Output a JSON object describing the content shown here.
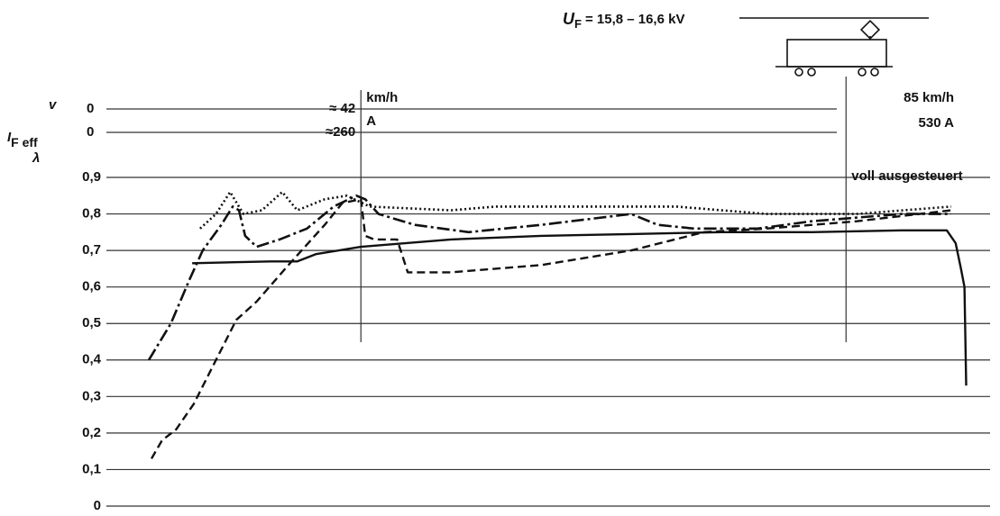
{
  "chart_data": {
    "type": "line",
    "ylabel": "λ",
    "ylim": [
      0,
      0.9
    ],
    "yticks": [
      0,
      {
        "value": 0.1,
        "label": "0,1"
      },
      {
        "value": 0.2,
        "label": "0,2"
      },
      {
        "value": 0.3,
        "label": "0,3"
      },
      {
        "value": 0.4,
        "label": "0,4"
      },
      {
        "value": 0.5,
        "label": "0,5"
      },
      {
        "value": 0.6,
        "label": "0,6"
      },
      {
        "value": 0.7,
        "label": "0,7"
      },
      {
        "value": 0.8,
        "label": "0,8"
      },
      {
        "value": 0.9,
        "label": "0,9"
      }
    ],
    "xlim": [
      0,
      100
    ],
    "grid": true,
    "supply": {
      "symbol": "U",
      "subscript": "F",
      "text": "= 15,8 – 16,6 kV"
    },
    "annotation": {
      "x": 83.7,
      "text": "voll ausgesteuert"
    },
    "scale_rows": [
      {
        "label": "v",
        "label_sub": null,
        "start": "0",
        "marks": [
          {
            "x": 28.8,
            "before": "≈ 42",
            "after": "km/h"
          },
          {
            "x": 83.7,
            "before": null,
            "after": "85 km/h"
          }
        ]
      },
      {
        "label": "I",
        "label_sub": "F eff",
        "start": "0",
        "marks": [
          {
            "x": 28.8,
            "before": "≈260",
            "after": "A"
          },
          {
            "x": 83.7,
            "before": null,
            "after": "530 A"
          }
        ]
      }
    ],
    "series": [
      {
        "color": "#111111",
        "dash": "none",
        "width": 2.4,
        "x": [
          9.7,
          18.6,
          21.6,
          23.7,
          28.8,
          39.0,
          49.2,
          59.4,
          69.6,
          79.8,
          90.0,
          95.1,
          96.1,
          96.7,
          97.1,
          97.3
        ],
        "values": [
          0.665,
          0.67,
          0.67,
          0.69,
          0.71,
          0.73,
          0.74,
          0.745,
          0.75,
          0.75,
          0.755,
          0.755,
          0.72,
          0.65,
          0.6,
          0.33
        ]
      },
      {
        "color": "#111111",
        "dash": "14,4,3,4",
        "width": 2.6,
        "x": [
          4.8,
          5.8,
          7.3,
          9.4,
          10.9,
          13.0,
          14.3,
          15.0,
          15.7,
          17.0,
          19.6,
          22.7,
          25.7,
          28.3,
          29.3,
          30.8,
          34.9,
          41.0,
          49.2,
          59.4,
          62.4,
          66.5,
          73.7,
          79.8,
          90.0,
          95.6
        ],
        "values": [
          0.4,
          0.44,
          0.5,
          0.62,
          0.7,
          0.77,
          0.82,
          0.81,
          0.74,
          0.71,
          0.73,
          0.76,
          0.82,
          0.85,
          0.84,
          0.8,
          0.77,
          0.75,
          0.77,
          0.8,
          0.77,
          0.76,
          0.76,
          0.78,
          0.8,
          0.8
        ]
      },
      {
        "color": "#111111",
        "dash": "9,5",
        "width": 2.4,
        "x": [
          5.1,
          6.3,
          7.9,
          9.9,
          12.4,
          14.7,
          17.0,
          20.6,
          24.7,
          26.7,
          28.8,
          29.3,
          30.3,
          32.9,
          34.1,
          39.0,
          49.2,
          59.4,
          67.6,
          74.7,
          84.9,
          95.6
        ],
        "values": [
          0.13,
          0.18,
          0.21,
          0.28,
          0.4,
          0.51,
          0.56,
          0.66,
          0.77,
          0.83,
          0.84,
          0.74,
          0.73,
          0.73,
          0.64,
          0.64,
          0.66,
          0.7,
          0.75,
          0.76,
          0.78,
          0.81
        ]
      },
      {
        "color": "#111111",
        "dash": "2,3",
        "width": 2.6,
        "x": [
          10.6,
          12.4,
          14.0,
          15.5,
          17.6,
          19.9,
          21.6,
          24.7,
          27.2,
          29.8,
          39.0,
          44.1,
          54.3,
          64.5,
          74.7,
          84.9,
          95.6
        ],
        "values": [
          0.76,
          0.8,
          0.86,
          0.8,
          0.81,
          0.86,
          0.81,
          0.84,
          0.85,
          0.82,
          0.81,
          0.82,
          0.82,
          0.82,
          0.8,
          0.8,
          0.82
        ]
      }
    ]
  }
}
